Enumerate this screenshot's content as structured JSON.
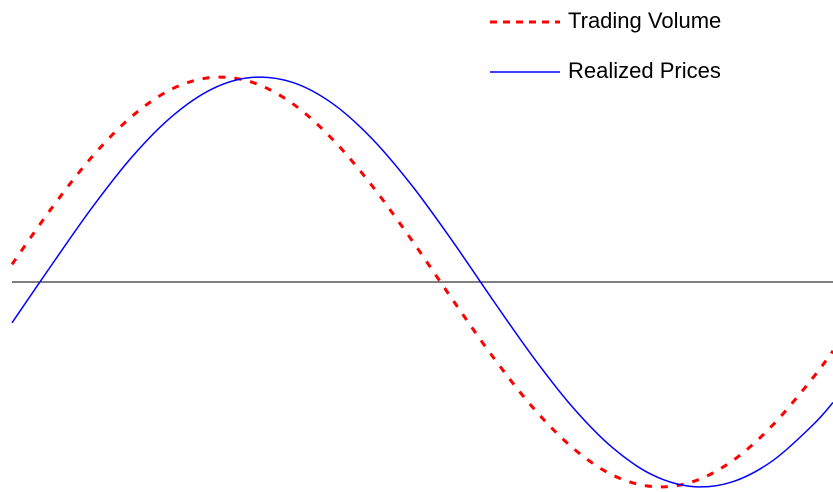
{
  "chart_data": {
    "type": "line",
    "x": [
      0,
      40,
      80,
      120,
      160,
      200,
      240,
      280,
      320,
      360,
      400,
      440,
      480,
      520,
      560,
      600,
      640,
      680,
      720,
      760,
      800,
      820
    ],
    "xlim": [
      0,
      820
    ],
    "ylim": [
      -1,
      1
    ],
    "legend": "upper right",
    "series": [
      {
        "name": "Trading Volume",
        "color": "#ff0000",
        "line_style": "dashed",
        "values": [
          0.086,
          0.363,
          0.611,
          0.809,
          0.942,
          0.998,
          0.974,
          0.871,
          0.697,
          0.467,
          0.199,
          -0.086,
          -0.363,
          -0.611,
          -0.809,
          -0.942,
          -0.998,
          -0.974,
          -0.871,
          -0.697,
          -0.467,
          -0.336
        ]
      },
      {
        "name": "Realized Prices",
        "color": "#0000ff",
        "line_style": "solid",
        "values": [
          -0.199,
          0.086,
          0.363,
          0.611,
          0.809,
          0.942,
          0.998,
          0.974,
          0.871,
          0.697,
          0.467,
          0.199,
          -0.086,
          -0.363,
          -0.611,
          -0.809,
          -0.942,
          -0.998,
          -0.974,
          -0.871,
          -0.697,
          -0.588
        ]
      }
    ]
  }
}
